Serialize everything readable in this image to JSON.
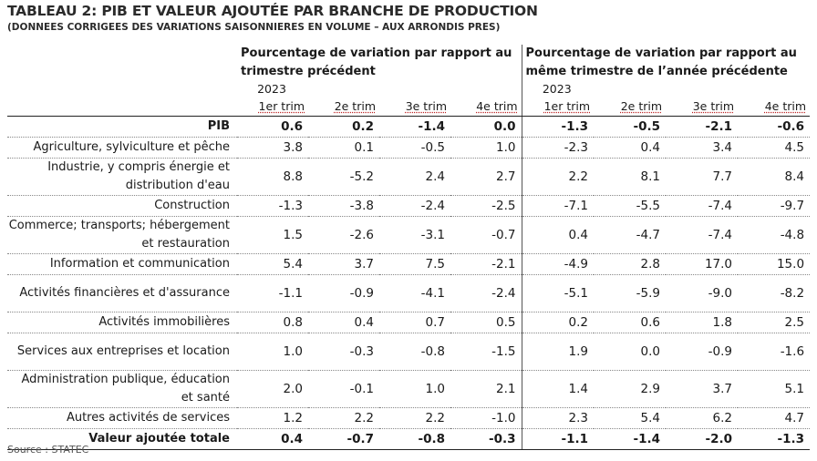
{
  "title": "TABLEAU 2: PIB ET VALEUR AJOUTÉE PAR BRANCHE DE PRODUCTION",
  "subtitle": "(DONNEES CORRIGEES DES VARIATIONS SAISONNIERES EN VOLUME – AUX ARRONDIS PRES)",
  "group_headers": [
    "Pourcentage de variation par rapport au trimestre précédent",
    "Pourcentage de variation par rapport au même trimestre de l’année précédente"
  ],
  "year": "2023",
  "quarters": [
    "1er trim",
    "2e trim",
    "3e trim",
    "4e trim"
  ],
  "rows": [
    {
      "label": "PIB",
      "bold": true,
      "values": [
        "0.6",
        "0.2",
        "-1.4",
        "0.0",
        "-1.3",
        "-0.5",
        "-2.1",
        "-0.6"
      ]
    },
    {
      "label": "Agriculture, sylviculture et pêche",
      "values": [
        "3.8",
        "0.1",
        "-0.5",
        "1.0",
        "-2.3",
        "0.4",
        "3.4",
        "4.5"
      ]
    },
    {
      "label": "Industrie, y compris énergie et distribution d'eau",
      "values": [
        "8.8",
        "-5.2",
        "2.4",
        "2.7",
        "2.2",
        "8.1",
        "7.7",
        "8.4"
      ]
    },
    {
      "label": "Construction",
      "values": [
        "-1.3",
        "-3.8",
        "-2.4",
        "-2.5",
        "-7.1",
        "-5.5",
        "-7.4",
        "-9.7"
      ]
    },
    {
      "label": "Commerce; transports; hébergement et restauration",
      "values": [
        "1.5",
        "-2.6",
        "-3.1",
        "-0.7",
        "0.4",
        "-4.7",
        "-7.4",
        "-4.8"
      ]
    },
    {
      "label": "Information et communication",
      "values": [
        "5.4",
        "3.7",
        "7.5",
        "-2.1",
        "-4.9",
        "2.8",
        "17.0",
        "15.0"
      ]
    },
    {
      "label": "Activités financières et d'assurance",
      "values": [
        "-1.1",
        "-0.9",
        "-4.1",
        "-2.4",
        "-5.1",
        "-5.9",
        "-9.0",
        "-8.2"
      ]
    },
    {
      "label": "Activités immobilières",
      "values": [
        "0.8",
        "0.4",
        "0.7",
        "0.5",
        "0.2",
        "0.6",
        "1.8",
        "2.5"
      ]
    },
    {
      "label": "Services aux entreprises et location",
      "values": [
        "1.0",
        "-0.3",
        "-0.8",
        "-1.5",
        "1.9",
        "0.0",
        "-0.9",
        "-1.6"
      ]
    },
    {
      "label": "Administration publique, éducation et santé",
      "values": [
        "2.0",
        "-0.1",
        "1.0",
        "2.1",
        "1.4",
        "2.9",
        "3.7",
        "5.1"
      ]
    },
    {
      "label": "Autres activités de services",
      "values": [
        "1.2",
        "2.2",
        "2.2",
        "-1.0",
        "2.3",
        "5.4",
        "6.2",
        "4.7"
      ]
    },
    {
      "label": "Valeur ajoutée totale",
      "bold": true,
      "values": [
        "0.4",
        "-0.7",
        "-0.8",
        "-0.3",
        "-1.1",
        "-1.4",
        "-2.0",
        "-1.3"
      ]
    }
  ],
  "source": "Source : STATEC"
}
